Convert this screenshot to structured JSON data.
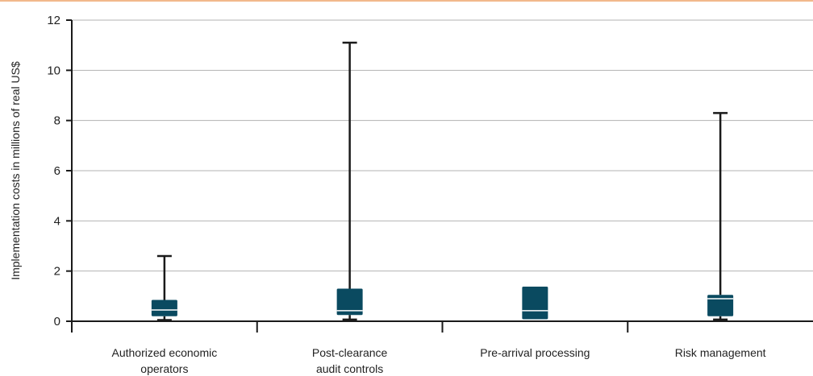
{
  "colors": {
    "box": "#0a4a60",
    "top_rule": "#f2b98c",
    "grid": "#b3b3b3",
    "axis": "#1a1a1a",
    "median": "#ffffff"
  },
  "chart_data": {
    "type": "box",
    "title": "",
    "ylabel": "Implementation costs in millions of real US$",
    "xlabel": "",
    "ylim": [
      0,
      12
    ],
    "yticks": [
      "0",
      "2",
      "4",
      "6",
      "8",
      "10",
      "12"
    ],
    "grid": true,
    "categories": [
      {
        "lines": [
          "Authorized economic",
          "operators"
        ],
        "min": 0.05,
        "q1": 0.2,
        "median": 0.45,
        "q3": 0.85,
        "max": 2.6
      },
      {
        "lines": [
          "Post-clearance",
          "audit controls"
        ],
        "min": 0.07,
        "q1": 0.25,
        "median": 0.42,
        "q3": 1.3,
        "max": 11.1
      },
      {
        "lines": [
          "Pre-arrival processing"
        ],
        "min": 0.08,
        "q1": 0.08,
        "median": 0.42,
        "q3": 1.38,
        "max": 1.38
      },
      {
        "lines": [
          "Risk management"
        ],
        "min": 0.07,
        "q1": 0.2,
        "median": 0.9,
        "q3": 1.05,
        "max": 8.3
      }
    ]
  }
}
